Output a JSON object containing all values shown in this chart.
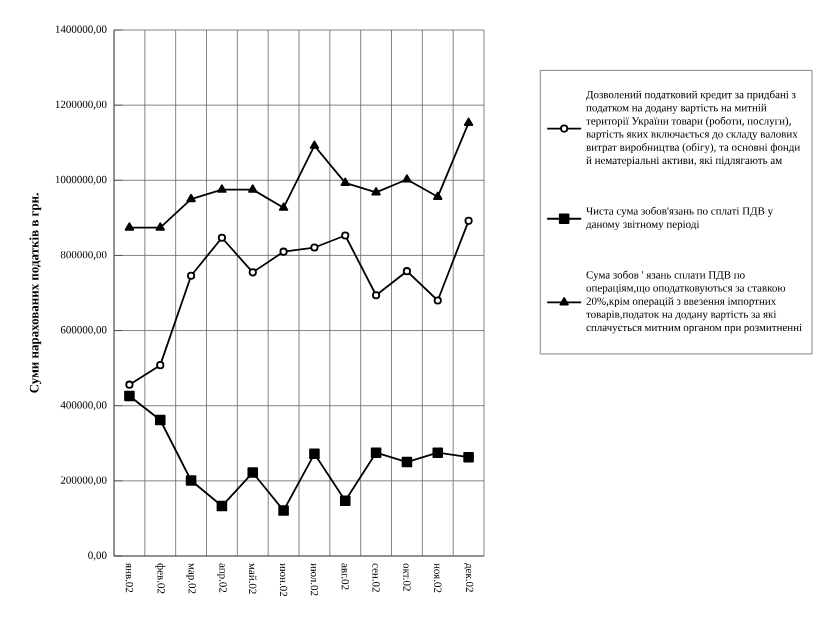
{
  "chart_data": {
    "type": "line",
    "ylabel": "Суми нарахованих податків в грн.",
    "categories": [
      "янв.02",
      "фев.02",
      "мар.02",
      "апр.02",
      "май.02",
      "июн.02",
      "июл.02",
      "авг.02",
      "сен.02",
      "окт.02",
      "ноя.02",
      "дек.02"
    ],
    "series": [
      {
        "name": "Дозволений податковий кредит за придбані з податком на додану вартість на митній території України товари (роботи, послуги), вартість яких включається до складу валових витрат виробництва (обігу), та основні фонди й нематеріальні активи, які підлягають ам",
        "color": "#000000",
        "marker": "circle",
        "values": [
          456000,
          508000,
          746000,
          847000,
          755000,
          810000,
          821000,
          853000,
          694000,
          758000,
          680000,
          892000
        ]
      },
      {
        "name": "Чиста сума зобов'язань по сплаті ПДВ у даному звітному періоді",
        "color": "#000000",
        "marker": "square",
        "values": [
          426000,
          362000,
          201000,
          133000,
          222000,
          121000,
          272000,
          147000,
          275000,
          250000,
          275000,
          263000
        ]
      },
      {
        "name": "Сума зобов ' язань сплати ПДВ по операціям,що оподатковуються за ставкою 20%,крім операцій з ввезення імпортних товарів,податок на додану вартість за які сплачується митним органом при розмитненні",
        "color": "#000000",
        "marker": "triangle",
        "values": [
          874000,
          874000,
          950000,
          975000,
          975000,
          927000,
          1092000,
          993000,
          968000,
          1002000,
          956000,
          1153000
        ]
      }
    ],
    "ylim": [
      0,
      1400000
    ],
    "yticks": [
      {
        "value": 0,
        "label": "0,00"
      },
      {
        "value": 200000,
        "label": "200000,00"
      },
      {
        "value": 400000,
        "label": "400000,00"
      },
      {
        "value": 600000,
        "label": "600000,00"
      },
      {
        "value": 800000,
        "label": "800000,00"
      },
      {
        "value": 1000000,
        "label": "1000000,00"
      },
      {
        "value": 1200000,
        "label": "1200000,00"
      },
      {
        "value": 1400000,
        "label": "1400000,00"
      }
    ],
    "grid": true,
    "legend": "right",
    "line_style": "solid"
  }
}
